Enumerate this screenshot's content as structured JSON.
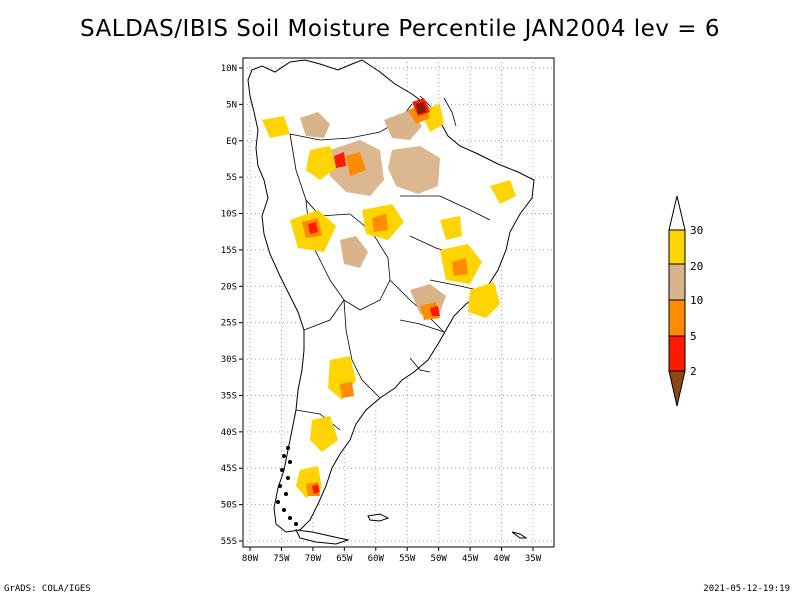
{
  "title": "SALDAS/IBIS Soil Moisture Percentile JAN2004 lev = 6",
  "footer": {
    "left": "GrADS: COLA/IGES",
    "right": "2021-05-12-19:19"
  },
  "map": {
    "lon_ticks": [
      "80W",
      "75W",
      "70W",
      "65W",
      "60W",
      "55W",
      "50W",
      "45W",
      "40W",
      "35W"
    ],
    "lat_ticks": [
      "10N",
      "5N",
      "EQ",
      "5S",
      "10S",
      "15S",
      "20S",
      "25S",
      "30S",
      "35S",
      "40S",
      "45S",
      "50S",
      "55S"
    ]
  },
  "colorbar": {
    "labels": [
      "30",
      "20",
      "10",
      "5",
      "2"
    ],
    "colors": [
      "#ffffff",
      "#ffd400",
      "#d9b48a",
      "#ff8c00",
      "#ff1a00",
      "#8b4a14"
    ]
  },
  "colors": {
    "dry_2": "#8b1a00",
    "dry_5": "#ff1a00",
    "dry_10": "#ff8c00",
    "dry_20": "#d9b48a",
    "dry_30": "#ffd400",
    "grid": "#a0a0a0"
  }
}
